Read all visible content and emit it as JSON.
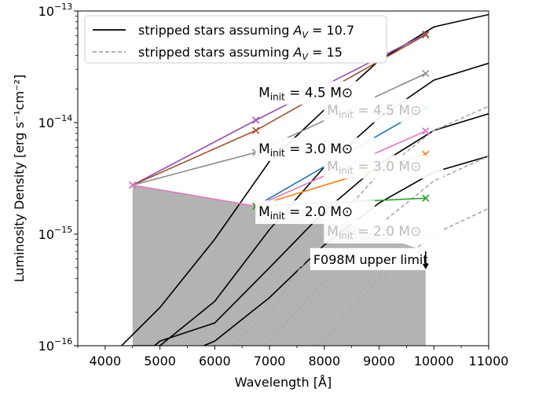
{
  "chart_data": {
    "type": "line",
    "xlabel": "Wavelength [Å]",
    "ylabel": "Luminosity Density [erg s⁻¹cm⁻²]",
    "xlim": [
      3500,
      11000
    ],
    "ylim": [
      1e-16,
      1e-13
    ],
    "yscale": "log",
    "xticks": [
      4000,
      5000,
      6000,
      7000,
      8000,
      9000,
      10000,
      11000
    ],
    "xtick_labels": [
      "4000",
      "5000",
      "6000",
      "7000",
      "8000",
      "9000",
      "10000",
      "11000"
    ],
    "yticks": [
      1e-16,
      1e-15,
      1e-14,
      1e-13
    ],
    "ytick_labels": [
      {
        "base": "10",
        "exp": "−16"
      },
      {
        "base": "10",
        "exp": "−15"
      },
      {
        "base": "10",
        "exp": "−14"
      },
      {
        "base": "10",
        "exp": "−13"
      }
    ],
    "legend": {
      "position": "top-left",
      "entries": [
        {
          "label_prefix": "stripped stars assuming ",
          "label_math": "A",
          "label_sub": "V",
          "label_value": " = 10.7",
          "style": "solid",
          "color": "#000000"
        },
        {
          "label_prefix": "stripped stars assuming ",
          "label_math": "A",
          "label_sub": "V",
          "label_value": " = 15",
          "style": "dashed",
          "color": "#aaaaaa"
        }
      ]
    },
    "model_labels": [
      {
        "text": "M",
        "sub": "init",
        "rest": " = 4.5 M⊙",
        "x": 6800,
        "y": 1.7e-14,
        "color": "#000000"
      },
      {
        "text": "M",
        "sub": "init",
        "rest": " = 4.5 M⊙",
        "x": 8050,
        "y": 1.18e-14,
        "color": "#bbbbbb"
      },
      {
        "text": "M",
        "sub": "init",
        "rest": " = 3.0 M⊙",
        "x": 6800,
        "y": 5.3e-15,
        "color": "#000000"
      },
      {
        "text": "M",
        "sub": "init",
        "rest": " = 3.0 M⊙",
        "x": 8050,
        "y": 3.7e-15,
        "color": "#bbbbbb"
      },
      {
        "text": "M",
        "sub": "init",
        "rest": " = 2.0 M⊙",
        "x": 6800,
        "y": 1.45e-15,
        "color": "#000000"
      },
      {
        "text": "M",
        "sub": "init",
        "rest": " = 2.0 M⊙",
        "x": 8050,
        "y": 9.7e-16,
        "color": "#bbbbbb"
      }
    ],
    "annotation": {
      "text": "F098M upper limit",
      "x": 7800,
      "y": 5.6e-16
    },
    "upper_limit": {
      "color": "#b3b3b3",
      "points": [
        [
          4500,
          2.75e-15
        ],
        [
          6750,
          1.78e-15
        ],
        [
          8300,
          1.3e-15
        ],
        [
          9850,
          7e-16
        ]
      ],
      "bottom": 1e-16
    },
    "filter_points": [
      {
        "name": "purple",
        "color": "#9a4fb5",
        "points": [
          [
            4500,
            2.75e-15
          ],
          [
            6750,
            1.05e-14
          ],
          [
            9850,
            6.2e-14
          ]
        ]
      },
      {
        "name": "brown",
        "color": "#a0522d",
        "points": [
          [
            4500,
            2.75e-15
          ],
          [
            6750,
            8.5e-15
          ],
          [
            9850,
            6.1e-14
          ]
        ]
      },
      {
        "name": "gray",
        "color": "#8c8c8c",
        "points": [
          [
            4500,
            2.75e-15
          ],
          [
            6750,
            5.4e-15
          ],
          [
            9850,
            2.75e-14
          ]
        ]
      },
      {
        "name": "blue",
        "color": "#1f77b4",
        "points": [
          [
            6750,
            1.78e-15
          ],
          [
            9850,
            1.35e-14
          ]
        ]
      },
      {
        "name": "pink",
        "color": "#e377c2",
        "points": [
          [
            4500,
            2.75e-15
          ],
          [
            6750,
            1.78e-15
          ],
          [
            9850,
            8.4e-15
          ]
        ]
      },
      {
        "name": "orange",
        "color": "#ff7f0e",
        "points": [
          [
            6750,
            1.78e-15
          ],
          [
            9850,
            5.2e-15
          ]
        ]
      },
      {
        "name": "green",
        "color": "#2ca02c",
        "points": [
          [
            6750,
            1.78e-15
          ],
          [
            9850,
            2.1e-15
          ]
        ]
      }
    ],
    "series": [
      {
        "style": "solid",
        "color": "#000000",
        "x": [
          4300,
          5000,
          6000,
          7000,
          8000,
          9000,
          10000,
          11000
        ],
        "y": [
          1e-16,
          2.2e-16,
          9e-16,
          4.5e-15,
          1.3e-14,
          3.6e-14,
          7.2e-14,
          9.3e-14
        ]
      },
      {
        "style": "solid",
        "color": "#000000",
        "x": [
          4500,
          5000,
          6000,
          7000,
          8000,
          9000,
          10000,
          11000
        ],
        "y": [
          1e-16,
          1e-16,
          2.5e-16,
          1.1e-15,
          4e-15,
          1.1e-14,
          2.4e-14,
          3.4e-14
        ]
      },
      {
        "style": "solid",
        "color": "#000000",
        "x": [
          4900,
          5000,
          6000,
          7000,
          8000,
          9000,
          10000,
          11000
        ],
        "y": [
          1e-16,
          1.1e-16,
          1.6e-16,
          5e-16,
          1.6e-15,
          4.2e-15,
          8.5e-15,
          1.2e-14
        ]
      },
      {
        "style": "solid",
        "color": "#000000",
        "x": [
          5800,
          6000,
          7000,
          8000,
          9000,
          10000,
          11000
        ],
        "y": [
          1e-16,
          1.1e-16,
          2.7e-16,
          8e-16,
          1.9e-15,
          3.6e-15,
          5e-15
        ]
      },
      {
        "style": "dashed",
        "color": "#aaaaaa",
        "x": [
          6300,
          7000,
          8000,
          9000,
          10000,
          11000
        ],
        "y": [
          1e-16,
          2e-16,
          1e-15,
          3.5e-15,
          8.5e-15,
          1.4e-14
        ]
      },
      {
        "style": "dashed",
        "color": "#aaaaaa",
        "x": [
          6900,
          7000,
          8000,
          9000,
          10000,
          11000
        ],
        "y": [
          1e-16,
          1.1e-16,
          3.8e-16,
          1.2e-15,
          3e-15,
          5e-15
        ]
      },
      {
        "style": "dashed",
        "color": "#aaaaaa",
        "x": [
          7800,
          8000,
          9000,
          10000,
          11000
        ],
        "y": [
          1e-16,
          1.15e-16,
          4e-16,
          1e-15,
          1.7e-15
        ]
      }
    ]
  }
}
